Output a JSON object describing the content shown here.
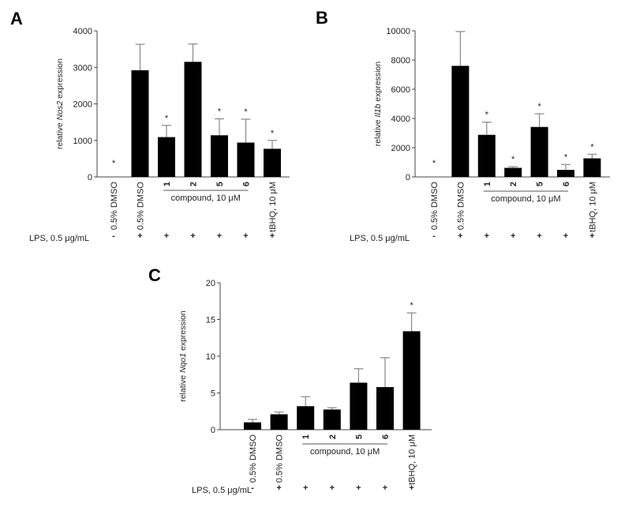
{
  "chart_data": [
    {
      "panel": "A",
      "type": "bar",
      "ylabel_prefix": "relative ",
      "ylabel_gene": "Nos2",
      "ylabel_suffix": " expression",
      "ylim": [
        0,
        4000
      ],
      "yticks": [
        0,
        1000,
        2000,
        3000,
        4000
      ],
      "categories": [
        "0.5% DMSO",
        "0.5% DMSO",
        "1",
        "2",
        "5",
        "6",
        "tBHQ, 10 μM"
      ],
      "values": [
        0,
        2920,
        1090,
        3150,
        1140,
        940,
        770
      ],
      "error_upper": [
        0,
        3630,
        1410,
        3640,
        1590,
        1580,
        1000
      ],
      "significant": [
        true,
        false,
        true,
        false,
        true,
        true,
        true
      ],
      "group_label": "compound, 10 μM",
      "lps_label": "LPS, 0.5 μg/mL",
      "lps": [
        "-",
        "+",
        "+",
        "+",
        "+",
        "+",
        "+"
      ],
      "significance_mark": "*",
      "bar_color": "#000000",
      "error_color": "#888888"
    },
    {
      "panel": "B",
      "type": "bar",
      "ylabel_prefix": "relative ",
      "ylabel_gene": "Il1b",
      "ylabel_suffix": " expression",
      "ylim": [
        0,
        10000
      ],
      "yticks": [
        0,
        2000,
        4000,
        6000,
        8000,
        10000
      ],
      "categories": [
        "0.5% DMSO",
        "0.5% DMSO",
        "1",
        "2",
        "5",
        "6",
        "tBHQ, 10 μM"
      ],
      "values": [
        0,
        7600,
        2880,
        620,
        3420,
        480,
        1270
      ],
      "error_upper": [
        0,
        9950,
        3750,
        700,
        4320,
        850,
        1550
      ],
      "significant": [
        true,
        false,
        true,
        true,
        true,
        true,
        true
      ],
      "group_label": "compound, 10 μM",
      "lps_label": "LPS, 0.5 μg/mL",
      "lps": [
        "-",
        "+",
        "+",
        "+",
        "+",
        "+",
        "+"
      ],
      "significance_mark": "*",
      "bar_color": "#000000",
      "error_color": "#888888"
    },
    {
      "panel": "C",
      "type": "bar",
      "ylabel_prefix": "relative ",
      "ylabel_gene": "Nqo1",
      "ylabel_suffix": " expression",
      "ylim": [
        0,
        20
      ],
      "yticks": [
        0,
        5,
        10,
        15,
        20
      ],
      "categories": [
        "0.5% DMSO",
        "0.5% DMSO",
        "1",
        "2",
        "5",
        "6",
        "tBHQ, 10 μM"
      ],
      "values": [
        1.0,
        2.1,
        3.2,
        2.75,
        6.4,
        5.8,
        13.4
      ],
      "error_upper": [
        1.4,
        2.4,
        4.5,
        3.0,
        8.3,
        9.8,
        15.9
      ],
      "significant": [
        false,
        false,
        false,
        false,
        false,
        false,
        true
      ],
      "group_label": "compound, 10 μM",
      "lps_label": "LPS, 0.5 μg/mL",
      "lps": [
        "-",
        "+",
        "+",
        "+",
        "+",
        "+",
        "+"
      ],
      "significance_mark": "*",
      "bar_color": "#000000",
      "error_color": "#888888"
    }
  ]
}
